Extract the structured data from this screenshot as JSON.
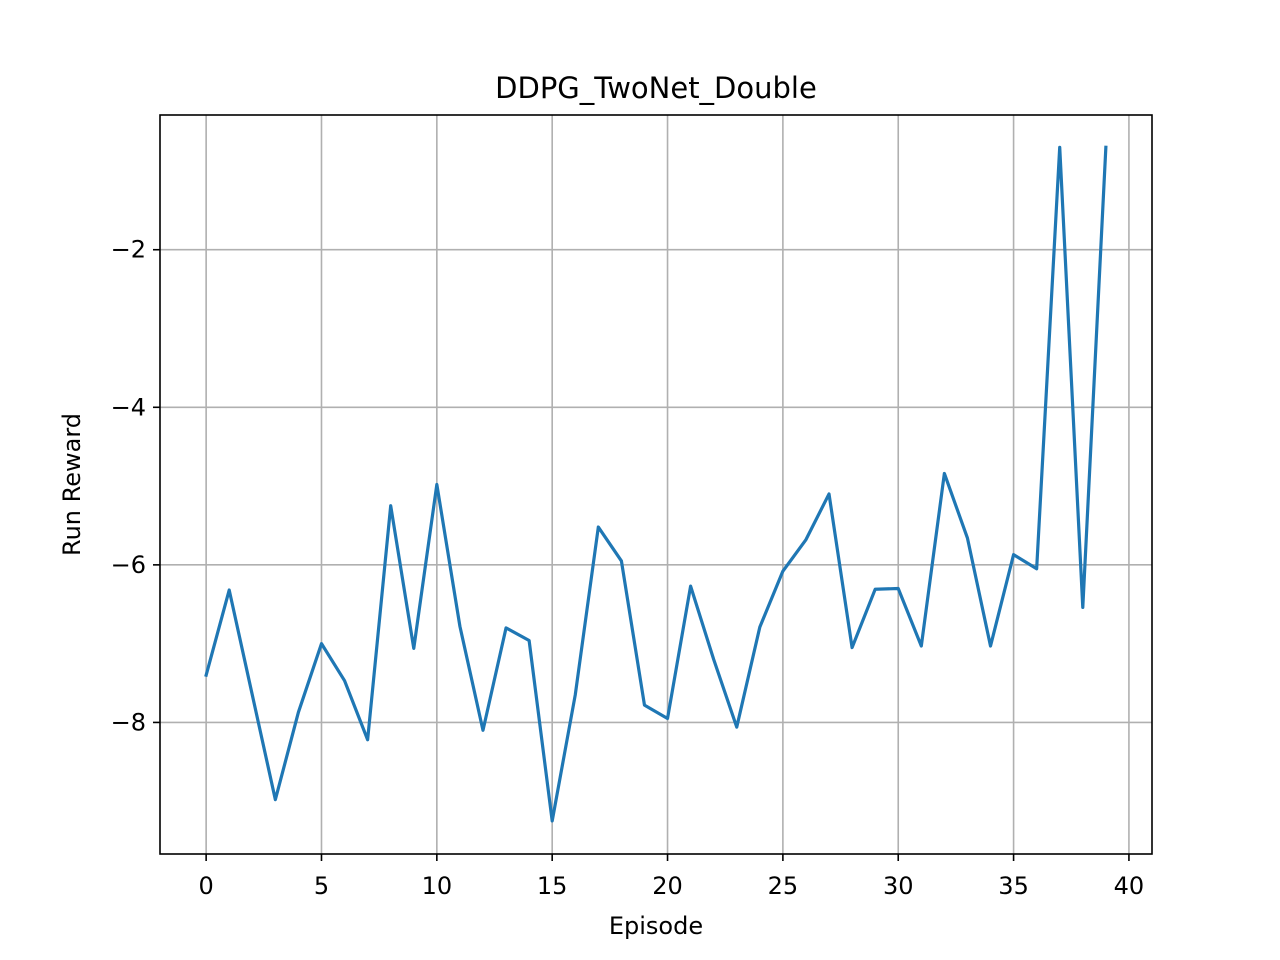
{
  "chart_data": {
    "type": "line",
    "title": "DDPG_TwoNet_Double",
    "xlabel": "Episode",
    "ylabel": "Run Reward",
    "xlim": [
      -2,
      41
    ],
    "ylim": [
      -9.67,
      -0.29
    ],
    "x_ticks": [
      0,
      5,
      10,
      15,
      20,
      25,
      30,
      35,
      40
    ],
    "x_tick_labels": [
      "0",
      "5",
      "10",
      "15",
      "20",
      "25",
      "30",
      "35",
      "40"
    ],
    "y_ticks": [
      -8,
      -6,
      -4,
      -2
    ],
    "y_tick_labels": [
      "−8",
      "−6",
      "−4",
      "−2"
    ],
    "grid": true,
    "series": [
      {
        "color": "#1f77b4",
        "x": [
          0,
          1,
          2,
          3,
          4,
          5,
          6,
          7,
          8,
          9,
          10,
          11,
          12,
          13,
          14,
          15,
          16,
          17,
          18,
          19,
          20,
          21,
          22,
          23,
          24,
          25,
          26,
          27,
          28,
          29,
          30,
          31,
          32,
          33,
          34,
          35,
          36,
          37,
          38,
          39
        ],
        "y": [
          -7.4,
          -6.32,
          -7.65,
          -8.98,
          -7.87,
          -7.0,
          -7.47,
          -8.22,
          -5.25,
          -7.06,
          -4.98,
          -6.78,
          -8.1,
          -6.8,
          -6.96,
          -9.25,
          -7.65,
          -5.52,
          -5.95,
          -7.78,
          -7.95,
          -6.27,
          -7.2,
          -8.06,
          -6.79,
          -6.08,
          -5.68,
          -5.1,
          -7.05,
          -6.31,
          -6.3,
          -7.03,
          -4.84,
          -5.66,
          -7.03,
          -5.87,
          -6.05,
          -0.7,
          -6.54,
          -0.7
        ]
      }
    ]
  }
}
